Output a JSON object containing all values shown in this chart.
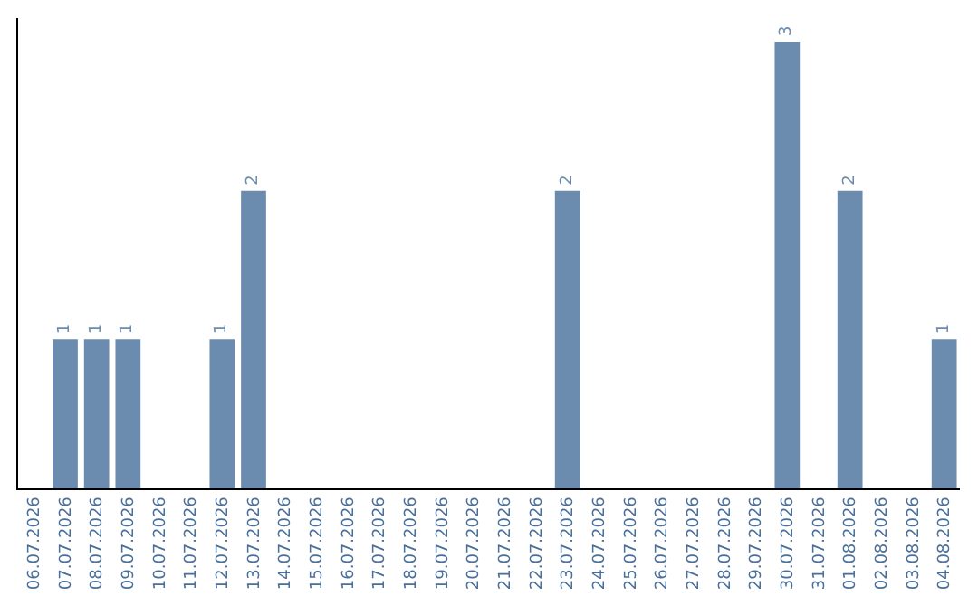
{
  "chart_data": {
    "type": "bar",
    "categories": [
      "06.07.2026",
      "07.07.2026",
      "08.07.2026",
      "09.07.2026",
      "10.07.2026",
      "11.07.2026",
      "12.07.2026",
      "13.07.2026",
      "14.07.2026",
      "15.07.2026",
      "16.07.2026",
      "17.07.2026",
      "18.07.2026",
      "19.07.2026",
      "20.07.2026",
      "21.07.2026",
      "22.07.2026",
      "23.07.2026",
      "24.07.2026",
      "25.07.2026",
      "26.07.2026",
      "27.07.2026",
      "28.07.2026",
      "29.07.2026",
      "30.07.2026",
      "31.07.2026",
      "01.08.2026",
      "02.08.2026",
      "03.08.2026",
      "04.08.2026"
    ],
    "values": [
      0,
      1,
      1,
      1,
      0,
      0,
      1,
      2,
      0,
      0,
      0,
      0,
      0,
      0,
      0,
      0,
      0,
      2,
      0,
      0,
      0,
      0,
      0,
      0,
      3,
      0,
      2,
      0,
      0,
      1
    ],
    "value_labels": [
      null,
      "1",
      "1",
      "1",
      null,
      null,
      "1",
      "2",
      null,
      null,
      null,
      null,
      null,
      null,
      null,
      null,
      null,
      "2",
      null,
      null,
      null,
      null,
      null,
      null,
      "3",
      null,
      "2",
      null,
      null,
      "1"
    ],
    "color": "#6b8cae",
    "legend": false,
    "tick_labels": "x"
  }
}
